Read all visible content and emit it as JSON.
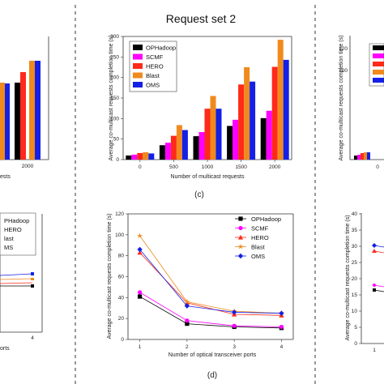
{
  "header": {
    "title": "Request set 2"
  },
  "chart_data": [
    {
      "panel": "c",
      "type": "bar",
      "caption": "(c)",
      "xlabel": "Number of multicast requests",
      "ylabel": "Average co-multicast requests completion time (s)",
      "categories": [
        "0",
        "500",
        "1000",
        "1500",
        "2000"
      ],
      "ylim": [
        0,
        300
      ],
      "yticks": [
        0,
        50,
        100,
        150,
        200,
        250,
        300
      ],
      "legend_position": "top-left",
      "series": [
        {
          "name": "OPHadoop",
          "color": "#000000",
          "values": [
            10,
            35,
            57,
            82,
            101
          ]
        },
        {
          "name": "SCMF",
          "color": "#ff00ff",
          "values": [
            12,
            41,
            67,
            97,
            119
          ]
        },
        {
          "name": "HERO",
          "color": "#ff2a1a",
          "values": [
            16,
            58,
            124,
            183,
            226
          ]
        },
        {
          "name": "Blast",
          "color": "#f08a1c",
          "values": [
            18,
            84,
            155,
            225,
            292
          ]
        },
        {
          "name": "OMS",
          "color": "#1420e6",
          "values": [
            15,
            72,
            124,
            190,
            243
          ]
        }
      ]
    },
    {
      "panel": "d",
      "type": "line",
      "caption": "(d)",
      "xlabel": "Number of optical transceiver ports",
      "ylabel": "Average co-multicast requests completion time (s)",
      "x": [
        1,
        2,
        3,
        4
      ],
      "xlim": [
        0.75,
        4.25
      ],
      "ylim": [
        0,
        120
      ],
      "yticks": [
        0,
        20,
        40,
        60,
        80,
        100,
        120
      ],
      "legend_position": "top-right",
      "series": [
        {
          "name": "OPHadoop",
          "color": "#000000",
          "marker": "square",
          "values": [
            41,
            15,
            12,
            11
          ]
        },
        {
          "name": "SCMF",
          "color": "#ff00ff",
          "marker": "circle",
          "values": [
            45,
            18,
            13,
            12
          ]
        },
        {
          "name": "HERO",
          "color": "#ff2a1a",
          "marker": "triangle",
          "values": [
            83,
            35,
            24,
            23
          ]
        },
        {
          "name": "Blast",
          "color": "#f08a1c",
          "marker": "star",
          "values": [
            99,
            36,
            27,
            25
          ]
        },
        {
          "name": "OMS",
          "color": "#1420e6",
          "marker": "diamond",
          "values": [
            86,
            32,
            26,
            25
          ]
        }
      ]
    }
  ],
  "left_partial": {
    "legend": [
      "PHadoop",
      "HERO",
      "last",
      "MS"
    ],
    "xtick": "2000",
    "xtick_d": "4",
    "xlabel_fragment": "ests",
    "xlabel_fragment_d": "orts"
  },
  "right_partial": {
    "yticks_top": [
      "100",
      "120"
    ],
    "ylabel_top": "Average co-multicast requests completion time (s)",
    "xtick_top": "0",
    "yticks_bottom": [
      "0",
      "5",
      "10",
      "15",
      "20",
      "25",
      "30",
      "35",
      "40"
    ],
    "ylabel_bottom": "Average co-multicast requests completion time (s)",
    "xtick_bottom": "1"
  }
}
